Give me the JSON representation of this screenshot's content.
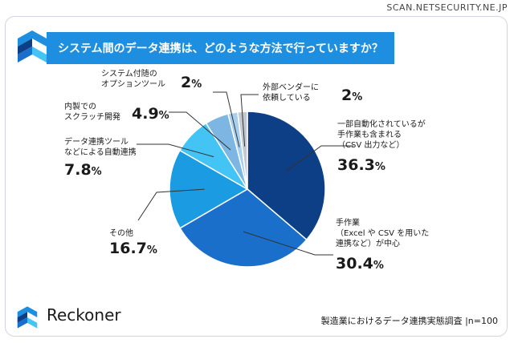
{
  "watermark": "SCAN.NETSECURITY.NE.JP",
  "title": "システム間のデータ連携は、どのような方法で行っていますか？",
  "brand_name": "Reckoner",
  "survey_note": "製造業におけるデータ連携実態調査 |n=100",
  "chart_data": {
    "type": "pie",
    "start": "top, clockwise",
    "slices": [
      {
        "label": "一部自動化されているが\n手作業も含まれる\n（CSV 出力など）",
        "value": 36.3,
        "display": "36.3",
        "color": "#0d3f86"
      },
      {
        "label": "手作業\n（Excel や CSV を用いた\n連携など）が中心",
        "value": 30.4,
        "display": "30.4",
        "color": "#1a6fcb"
      },
      {
        "label": "その他",
        "value": 16.7,
        "display": "16.7",
        "color": "#1b9be2"
      },
      {
        "label": "データ連携ツール\nなどによる自動連携",
        "value": 7.8,
        "display": "7.8",
        "color": "#43c4f4"
      },
      {
        "label": "内製での\nスクラッチ開発",
        "value": 4.9,
        "display": "4.9",
        "color": "#7db6e3"
      },
      {
        "label": "システム付随の\nオプションツール",
        "value": 2,
        "display": "2",
        "color": "#a8cfee"
      },
      {
        "label": "外部ベンダーに\n依頼している",
        "value": 2,
        "display": "2",
        "color": "#c4c9cf"
      }
    ],
    "unit": "%"
  }
}
